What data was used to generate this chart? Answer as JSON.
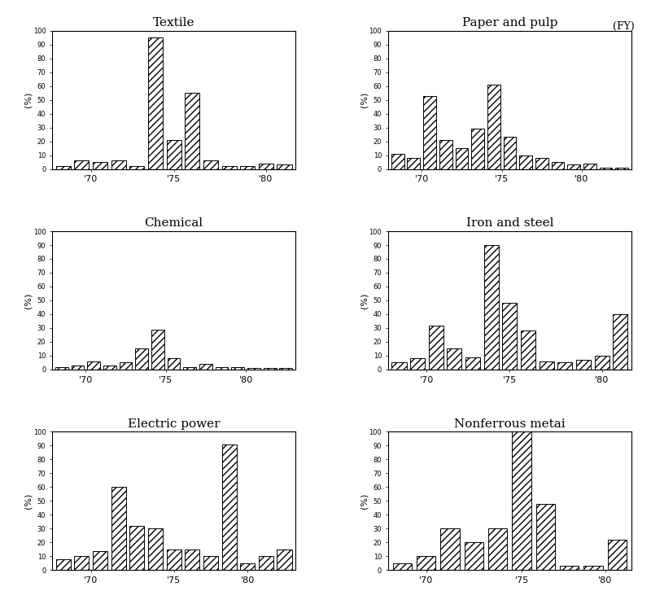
{
  "titles": [
    "Textile",
    "Paper and pulp",
    "Chemical",
    "Iron and steel",
    "Electric power",
    "Nonferrous metai"
  ],
  "fy_label": "(FY)",
  "hatch_pattern": "////",
  "bar_color": "white",
  "bar_edgecolor": "black",
  "background_color": "white",
  "panels": [
    {
      "values": [
        2,
        6,
        5,
        6,
        2,
        95,
        21,
        55,
        6,
        2,
        2,
        4,
        3
      ],
      "xtick_pos": [
        1.5,
        6.0,
        11.0
      ],
      "xtick_labels": [
        "'70",
        "'75",
        "'80"
      ]
    },
    {
      "values": [
        11,
        8,
        53,
        21,
        15,
        29,
        61,
        23,
        10,
        8,
        5,
        3,
        4,
        1,
        1
      ],
      "xtick_pos": [
        1.5,
        6.5,
        11.5
      ],
      "xtick_labels": [
        "'70",
        "'75",
        "'80"
      ]
    },
    {
      "values": [
        2,
        3,
        6,
        3,
        5,
        15,
        29,
        8,
        2,
        4,
        2,
        2,
        1,
        1,
        1
      ],
      "xtick_pos": [
        1.5,
        6.5,
        11.5
      ],
      "xtick_labels": [
        "'70",
        "'75",
        "'80"
      ]
    },
    {
      "values": [
        5,
        8,
        32,
        15,
        9,
        90,
        48,
        28,
        6,
        5,
        7,
        10,
        40
      ],
      "xtick_pos": [
        1.5,
        6.0,
        11.0
      ],
      "xtick_labels": [
        "'70",
        "'75",
        "'80"
      ]
    },
    {
      "values": [
        8,
        10,
        14,
        60,
        32,
        30,
        15,
        15,
        10,
        91,
        5,
        10,
        15
      ],
      "xtick_pos": [
        1.5,
        6.0,
        10.0
      ],
      "xtick_labels": [
        "'70",
        "'75",
        "'80"
      ]
    },
    {
      "values": [
        5,
        10,
        30,
        20,
        30,
        100,
        48,
        3,
        3,
        22
      ],
      "xtick_pos": [
        1.0,
        5.0,
        8.5
      ],
      "xtick_labels": [
        "'70",
        "'75",
        "'80"
      ]
    }
  ]
}
